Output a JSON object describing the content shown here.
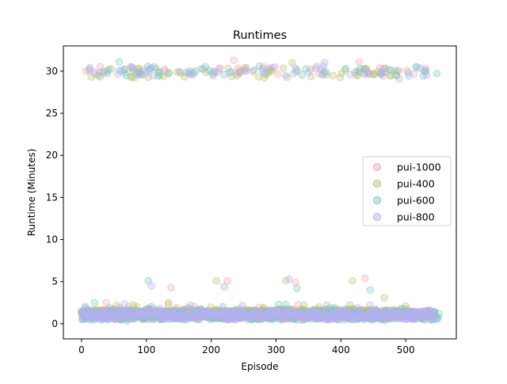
{
  "chart_data": {
    "type": "scatter",
    "title": "Runtimes",
    "xlabel": "Episode",
    "ylabel": "Runtime (Minutes)",
    "xlim": [
      -28,
      578
    ],
    "ylim": [
      -1.8,
      33
    ],
    "xticks": [
      0,
      100,
      200,
      300,
      400,
      500
    ],
    "yticks": [
      0,
      5,
      10,
      15,
      20,
      25,
      30
    ],
    "grid": false,
    "legend_position": "center-right",
    "alpha": 0.3,
    "series": [
      {
        "name": "pui-1000",
        "color": "#f4a6b1",
        "n_episodes": 540,
        "cluster_low_mean": 1.1,
        "cluster_high_mean": 30.0,
        "outliers": [
          {
            "x": 38,
            "y": 2.5
          },
          {
            "x": 138,
            "y": 4.3
          },
          {
            "x": 225,
            "y": 5.1
          },
          {
            "x": 235,
            "y": 31.3
          },
          {
            "x": 330,
            "y": 4.9
          },
          {
            "x": 428,
            "y": 31.1
          },
          {
            "x": 437,
            "y": 5.4
          }
        ]
      },
      {
        "name": "pui-400",
        "color": "#b9c36e",
        "n_episodes": 500,
        "cluster_low_mean": 1.2,
        "cluster_high_mean": 29.8,
        "outliers": [
          {
            "x": 80,
            "y": 2.2
          },
          {
            "x": 208,
            "y": 5.1
          },
          {
            "x": 315,
            "y": 5.1
          },
          {
            "x": 325,
            "y": 31.0
          },
          {
            "x": 418,
            "y": 5.1
          },
          {
            "x": 467,
            "y": 3.1
          },
          {
            "x": 500,
            "y": 2.1
          }
        ]
      },
      {
        "name": "pui-600",
        "color": "#79c7c2",
        "n_episodes": 552,
        "cluster_low_mean": 1.0,
        "cluster_high_mean": 30.0,
        "outliers": [
          {
            "x": 20,
            "y": 2.5
          },
          {
            "x": 58,
            "y": 31.1
          },
          {
            "x": 103,
            "y": 5.1
          },
          {
            "x": 220,
            "y": 4.4
          },
          {
            "x": 332,
            "y": 4.2
          },
          {
            "x": 445,
            "y": 4.0
          }
        ]
      },
      {
        "name": "pui-800",
        "color": "#b6b0f2",
        "n_episodes": 545,
        "cluster_low_mean": 1.0,
        "cluster_high_mean": 30.0,
        "outliers": [
          {
            "x": 108,
            "y": 4.5
          },
          {
            "x": 168,
            "y": 2.2
          },
          {
            "x": 320,
            "y": 5.3
          },
          {
            "x": 375,
            "y": 31.0
          },
          {
            "x": 378,
            "y": 2.2
          },
          {
            "x": 445,
            "y": 2.2
          },
          {
            "x": 490,
            "y": 29.1
          }
        ]
      }
    ]
  }
}
